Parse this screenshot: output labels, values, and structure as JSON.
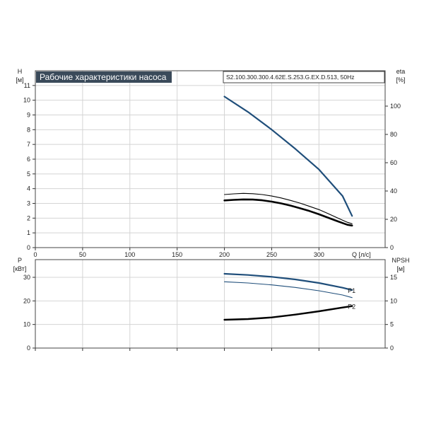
{
  "chart_data": [
    {
      "type": "line",
      "title": "Рабочие характеристики насоса",
      "model": "S2.100.300.300.4.62E.S.253.G.EX.D.513, 50Hz",
      "y_left": {
        "label": "H",
        "unit": "[м]",
        "ticks": [
          0,
          1,
          2,
          3,
          4,
          5,
          6,
          7,
          8,
          9,
          10,
          11
        ],
        "range": [
          0,
          12
        ]
      },
      "y_right": {
        "label": "eta",
        "unit": "[%]",
        "ticks": [
          0,
          20,
          40,
          60,
          80,
          100
        ],
        "range": [
          0,
          125
        ]
      },
      "x": {
        "label": "Q",
        "unit": "[л/с]",
        "ticks": [
          0,
          50,
          100,
          150,
          200,
          250,
          300
        ],
        "range": [
          0,
          370
        ]
      },
      "grid": true,
      "series": [
        {
          "axis": "left",
          "color": "#1f4e7a",
          "width": 2.2,
          "points": [
            [
              200,
              10.25
            ],
            [
              225,
              9.2
            ],
            [
              250,
              8.0
            ],
            [
              275,
              6.7
            ],
            [
              300,
              5.3
            ],
            [
              325,
              3.5
            ],
            [
              335,
              2.15
            ]
          ]
        },
        {
          "axis": "left",
          "color": "#000000",
          "width": 1.1,
          "points": [
            [
              200,
              3.6
            ],
            [
              210,
              3.65
            ],
            [
              220,
              3.68
            ],
            [
              230,
              3.66
            ],
            [
              240,
              3.6
            ],
            [
              250,
              3.5
            ],
            [
              260,
              3.37
            ],
            [
              270,
              3.2
            ],
            [
              280,
              3.02
            ],
            [
              290,
              2.8
            ],
            [
              300,
              2.58
            ],
            [
              310,
              2.3
            ],
            [
              320,
              2.0
            ],
            [
              330,
              1.72
            ],
            [
              335,
              1.62
            ]
          ]
        },
        {
          "axis": "left",
          "color": "#000000",
          "width": 2.6,
          "points": [
            [
              200,
              3.2
            ],
            [
              210,
              3.24
            ],
            [
              220,
              3.27
            ],
            [
              230,
              3.26
            ],
            [
              240,
              3.21
            ],
            [
              250,
              3.12
            ],
            [
              260,
              3.0
            ],
            [
              270,
              2.85
            ],
            [
              280,
              2.67
            ],
            [
              290,
              2.48
            ],
            [
              300,
              2.26
            ],
            [
              310,
              2.02
            ],
            [
              320,
              1.78
            ],
            [
              330,
              1.55
            ],
            [
              335,
              1.5
            ]
          ]
        }
      ]
    },
    {
      "type": "line",
      "y_left": {
        "label": "P",
        "unit": "[кВт]",
        "ticks": [
          0,
          10,
          20,
          30
        ],
        "range": [
          0,
          37.5
        ]
      },
      "y_right": {
        "label": "NPSH",
        "unit": "[м]",
        "ticks": [
          0,
          5,
          10,
          15
        ],
        "range": [
          0,
          18.75
        ]
      },
      "x": {
        "range": [
          0,
          370
        ]
      },
      "grid": true,
      "series": [
        {
          "name": "P1",
          "axis": "left",
          "color": "#1f4e7a",
          "width": 2.2,
          "points": [
            [
              200,
              31.5
            ],
            [
              225,
              31
            ],
            [
              250,
              30.2
            ],
            [
              275,
              29.1
            ],
            [
              300,
              27.6
            ],
            [
              325,
              25.6
            ],
            [
              335,
              24.6
            ]
          ]
        },
        {
          "axis": "left",
          "color": "#1f4e7a",
          "width": 1.1,
          "points": [
            [
              200,
              28.1
            ],
            [
              225,
              27.6
            ],
            [
              250,
              26.8
            ],
            [
              275,
              25.7
            ],
            [
              300,
              24.3
            ],
            [
              325,
              22.5
            ],
            [
              335,
              21.4
            ]
          ]
        },
        {
          "name": "P2",
          "axis": "right",
          "color": "#000000",
          "width": 2.4,
          "points": [
            [
              200,
              6.0
            ],
            [
              225,
              6.15
            ],
            [
              250,
              6.5
            ],
            [
              275,
              7.1
            ],
            [
              300,
              7.8
            ],
            [
              325,
              8.6
            ],
            [
              335,
              8.9
            ]
          ]
        }
      ]
    }
  ]
}
